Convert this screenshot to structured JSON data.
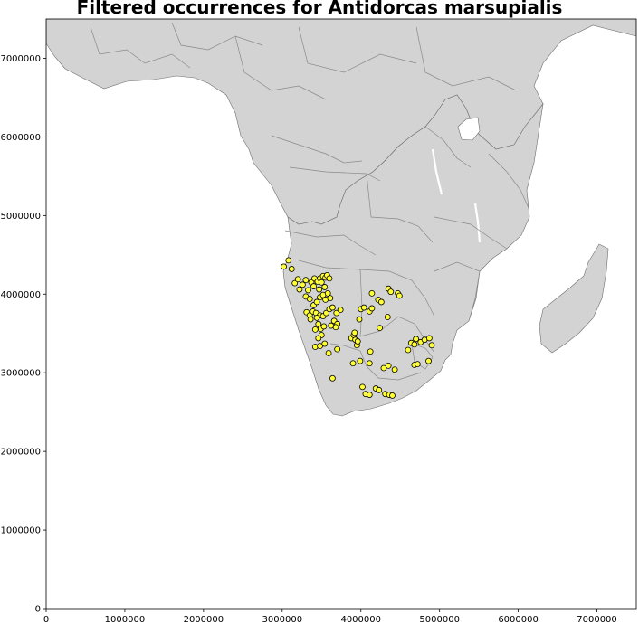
{
  "title": "Filtered occurrences for Antidorcas marsupialis",
  "chart_data": {
    "type": "scatter",
    "title": "Filtered occurrences for Antidorcas marsupialis",
    "xlim": [
      0,
      7500000
    ],
    "ylim": [
      0,
      7500000
    ],
    "x_ticks": [
      "0",
      "1000000",
      "2000000",
      "3000000",
      "4000000",
      "5000000",
      "6000000",
      "7000000"
    ],
    "y_ticks": [
      "0",
      "1000000",
      "2000000",
      "3000000",
      "4000000",
      "5000000",
      "6000000",
      "7000000"
    ],
    "grid": false,
    "colors": {
      "land": "#d3d3d3",
      "border": "#8a8a8a",
      "point_fill": "#ffff33",
      "point_edge": "#000000"
    },
    "series": [
      {
        "values": [
          [
            3020000,
            4350000
          ],
          [
            3080000,
            4430000
          ],
          [
            3120000,
            4320000
          ],
          [
            3160000,
            4140000
          ],
          [
            3200000,
            4190000
          ],
          [
            3220000,
            4060000
          ],
          [
            3260000,
            4120000
          ],
          [
            3300000,
            4180000
          ],
          [
            3330000,
            4050000
          ],
          [
            3370000,
            4150000
          ],
          [
            3410000,
            4200000
          ],
          [
            3450000,
            4160000
          ],
          [
            3480000,
            4200000
          ],
          [
            3500000,
            4150000
          ],
          [
            3520000,
            4230000
          ],
          [
            3550000,
            4210000
          ],
          [
            3570000,
            4240000
          ],
          [
            3600000,
            4200000
          ],
          [
            3300000,
            3970000
          ],
          [
            3350000,
            3940000
          ],
          [
            3400000,
            3860000
          ],
          [
            3440000,
            3900000
          ],
          [
            3480000,
            3960000
          ],
          [
            3520000,
            3990000
          ],
          [
            3550000,
            3930000
          ],
          [
            3580000,
            4010000
          ],
          [
            3610000,
            3950000
          ],
          [
            3470000,
            4060000
          ],
          [
            3540000,
            4090000
          ],
          [
            3400000,
            4100000
          ],
          [
            3310000,
            3770000
          ],
          [
            3350000,
            3730000
          ],
          [
            3390000,
            3780000
          ],
          [
            3430000,
            3760000
          ],
          [
            3480000,
            3730000
          ],
          [
            3520000,
            3720000
          ],
          [
            3560000,
            3760000
          ],
          [
            3600000,
            3810000
          ],
          [
            3640000,
            3830000
          ],
          [
            3690000,
            3760000
          ],
          [
            3740000,
            3800000
          ],
          [
            3660000,
            3660000
          ],
          [
            3700000,
            3620000
          ],
          [
            3680000,
            3580000
          ],
          [
            3620000,
            3600000
          ],
          [
            3420000,
            3550000
          ],
          [
            3460000,
            3620000
          ],
          [
            3490000,
            3560000
          ],
          [
            3530000,
            3590000
          ],
          [
            3500000,
            3480000
          ],
          [
            3460000,
            3440000
          ],
          [
            3420000,
            3330000
          ],
          [
            3480000,
            3340000
          ],
          [
            3540000,
            3370000
          ],
          [
            3590000,
            3250000
          ],
          [
            3700000,
            3300000
          ],
          [
            3640000,
            2930000
          ],
          [
            3900000,
            3120000
          ],
          [
            3990000,
            3150000
          ],
          [
            3880000,
            3440000
          ],
          [
            3910000,
            3480000
          ],
          [
            3930000,
            3420000
          ],
          [
            3950000,
            3350000
          ],
          [
            3960000,
            3400000
          ],
          [
            3920000,
            3510000
          ],
          [
            3980000,
            3680000
          ],
          [
            4000000,
            3810000
          ],
          [
            4040000,
            3830000
          ],
          [
            4110000,
            3780000
          ],
          [
            4140000,
            3820000
          ],
          [
            4140000,
            4010000
          ],
          [
            4220000,
            3930000
          ],
          [
            4260000,
            3900000
          ],
          [
            4350000,
            4070000
          ],
          [
            4380000,
            4030000
          ],
          [
            4470000,
            4010000
          ],
          [
            4490000,
            3980000
          ],
          [
            4340000,
            3710000
          ],
          [
            4240000,
            3570000
          ],
          [
            4120000,
            3270000
          ],
          [
            4110000,
            3120000
          ],
          [
            4290000,
            3060000
          ],
          [
            4350000,
            3090000
          ],
          [
            4430000,
            3040000
          ],
          [
            4020000,
            2820000
          ],
          [
            4060000,
            2730000
          ],
          [
            4110000,
            2720000
          ],
          [
            4190000,
            2800000
          ],
          [
            4230000,
            2780000
          ],
          [
            4310000,
            2730000
          ],
          [
            4360000,
            2720000
          ],
          [
            4400000,
            2710000
          ],
          [
            4600000,
            3290000
          ],
          [
            4640000,
            3380000
          ],
          [
            4680000,
            3360000
          ],
          [
            4700000,
            3430000
          ],
          [
            4760000,
            3390000
          ],
          [
            4810000,
            3420000
          ],
          [
            4870000,
            3440000
          ],
          [
            4900000,
            3350000
          ],
          [
            4680000,
            3100000
          ],
          [
            4720000,
            3110000
          ],
          [
            4860000,
            3150000
          ],
          [
            3360000,
            3680000
          ],
          [
            3440000,
            3700000
          ]
        ]
      }
    ]
  }
}
